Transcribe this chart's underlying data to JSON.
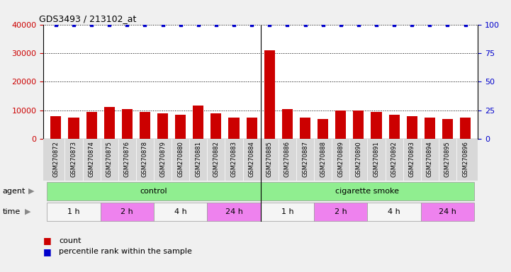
{
  "title": "GDS3493 / 213102_at",
  "samples": [
    "GSM270872",
    "GSM270873",
    "GSM270874",
    "GSM270875",
    "GSM270876",
    "GSM270878",
    "GSM270879",
    "GSM270880",
    "GSM270881",
    "GSM270882",
    "GSM270883",
    "GSM270884",
    "GSM270885",
    "GSM270886",
    "GSM270887",
    "GSM270888",
    "GSM270889",
    "GSM270890",
    "GSM270891",
    "GSM270892",
    "GSM270893",
    "GSM270894",
    "GSM270895",
    "GSM270896"
  ],
  "counts": [
    8000,
    7500,
    9500,
    11000,
    10500,
    9500,
    9000,
    8500,
    11500,
    9000,
    7500,
    7500,
    31000,
    10500,
    7500,
    7000,
    10000,
    10000,
    9500,
    8500,
    8000,
    7500,
    7000,
    7500
  ],
  "percentile_ranks": [
    100,
    100,
    100,
    100,
    100,
    100,
    100,
    100,
    100,
    100,
    100,
    100,
    100,
    100,
    100,
    100,
    100,
    100,
    100,
    100,
    100,
    100,
    100,
    100
  ],
  "bar_color": "#cc0000",
  "dot_color": "#0000cc",
  "ylim_left": [
    0,
    40000
  ],
  "ylim_right": [
    0,
    100
  ],
  "yticks_left": [
    0,
    10000,
    20000,
    30000,
    40000
  ],
  "yticks_right": [
    0,
    25,
    50,
    75,
    100
  ],
  "time_groups": [
    {
      "label": "1 h",
      "start": 0,
      "end": 3,
      "color": "#f5f5f5"
    },
    {
      "label": "2 h",
      "start": 3,
      "end": 6,
      "color": "#ee82ee"
    },
    {
      "label": "4 h",
      "start": 6,
      "end": 9,
      "color": "#f5f5f5"
    },
    {
      "label": "24 h",
      "start": 9,
      "end": 12,
      "color": "#ee82ee"
    },
    {
      "label": "1 h",
      "start": 12,
      "end": 15,
      "color": "#f5f5f5"
    },
    {
      "label": "2 h",
      "start": 15,
      "end": 18,
      "color": "#ee82ee"
    },
    {
      "label": "4 h",
      "start": 18,
      "end": 21,
      "color": "#f5f5f5"
    },
    {
      "label": "24 h",
      "start": 21,
      "end": 24,
      "color": "#ee82ee"
    }
  ],
  "agent_groups": [
    {
      "label": "control",
      "start": 0,
      "end": 12,
      "color": "#90ee90"
    },
    {
      "label": "cigarette smoke",
      "start": 12,
      "end": 24,
      "color": "#90ee90"
    }
  ],
  "legend_count_label": "count",
  "legend_pct_label": "percentile rank within the sample",
  "xtick_bg": "#d8d8d8",
  "fig_bg": "#f0f0f0"
}
